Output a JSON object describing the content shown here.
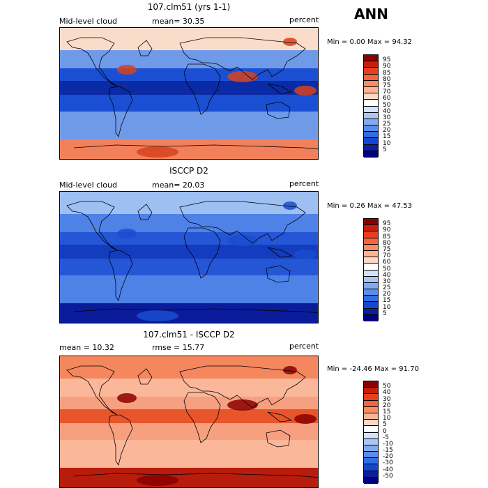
{
  "season": "ANN",
  "panels": [
    {
      "title": "107.clm51 (yrs 1-1)",
      "left_label": "Mid-level cloud",
      "center_label": "mean=  30.35",
      "right_label": "percent",
      "minmax": "Min =   0.00 Max =  94.32",
      "colorbar": {
        "labels": [
          "95",
          "90",
          "85",
          "80",
          "75",
          "70",
          "60",
          "50",
          "40",
          "30",
          "25",
          "20",
          "15",
          "10",
          "5"
        ],
        "colors": [
          "#8b0000",
          "#c81e0a",
          "#e8401e",
          "#f5643c",
          "#fa8c64",
          "#fcb496",
          "#fdd8c4",
          "#ffffff",
          "#d2e2fb",
          "#aac8f5",
          "#82aaf0",
          "#5a8ceb",
          "#326ee1",
          "#1446d2",
          "#0a1ea0",
          "#000080"
        ]
      },
      "map_colors": {
        "polar": "#fbdccb",
        "midlat": "#6f9ae8",
        "tropic": "#1a4fd3",
        "band": "#0b2aa5",
        "south": "#f2805a",
        "hot": "#d8421d"
      }
    },
    {
      "title": "ISCCP D2",
      "left_label": "Mid-level cloud",
      "center_label": "mean=  20.03",
      "right_label": "percent",
      "minmax": "Min =   0.26 Max =  47.53",
      "colorbar": {
        "labels": [
          "95",
          "90",
          "85",
          "80",
          "75",
          "70",
          "60",
          "50",
          "40",
          "30",
          "25",
          "20",
          "15",
          "10",
          "5"
        ],
        "colors": [
          "#8b0000",
          "#c81e0a",
          "#e8401e",
          "#f5643c",
          "#fa8c64",
          "#fcb496",
          "#fdd8c4",
          "#ffffff",
          "#d2e2fb",
          "#aac8f5",
          "#82aaf0",
          "#5a8ceb",
          "#326ee1",
          "#1446d2",
          "#0a1ea0",
          "#000080"
        ]
      },
      "map_colors": {
        "polar": "#9dbff2",
        "midlat": "#4f82e6",
        "tropic": "#2456d6",
        "band": "#143cbf",
        "south": "#0a1c9a",
        "hot": "#1a4cd0"
      }
    },
    {
      "title": "107.clm51 - ISCCP D2",
      "left_label": "mean =  10.32",
      "center_label": "rmse =  15.77",
      "right_label": "percent",
      "minmax": "Min = -24.46 Max =  91.70",
      "colorbar": {
        "labels": [
          "50",
          "40",
          "30",
          "20",
          "15",
          "10",
          "5",
          "0",
          "-5",
          "-10",
          "-15",
          "-20",
          "-30",
          "-40",
          "-50"
        ],
        "colors": [
          "#8b0000",
          "#c81e0a",
          "#e8401e",
          "#f5643c",
          "#fa8c64",
          "#fcb496",
          "#fdd8c4",
          "#ffffff",
          "#d2e2fb",
          "#aac8f5",
          "#82aaf0",
          "#5a8ceb",
          "#326ee1",
          "#1446d2",
          "#0a1ea0",
          "#000080"
        ]
      },
      "map_colors": {
        "polar": "#f4875e",
        "midlat": "#fbb79a",
        "tropic": "#f6a080",
        "band": "#e8552b",
        "south": "#b81c0c",
        "hot": "#8b0000"
      }
    }
  ]
}
